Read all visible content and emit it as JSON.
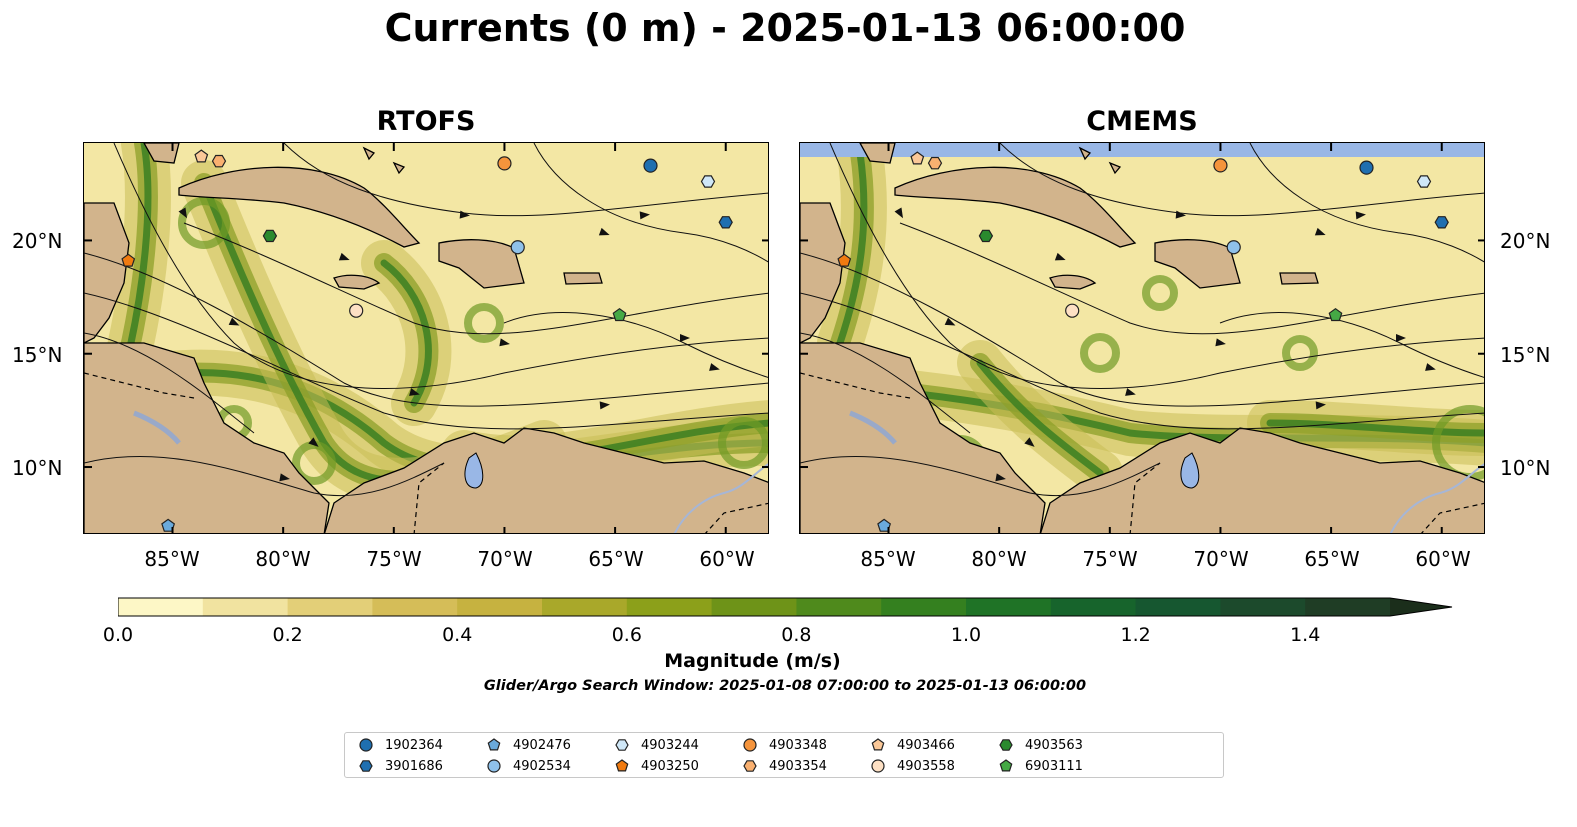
{
  "title": "Currents (0 m) - 2025-01-13 06:00:00",
  "panels": [
    {
      "title": "RTOFS"
    },
    {
      "title": "CMEMS"
    }
  ],
  "axes": {
    "lat_labels": [
      "20°N",
      "15°N",
      "10°N"
    ],
    "lon_labels": [
      "85°W",
      "80°W",
      "75°W",
      "70°W",
      "65°W",
      "60°W"
    ]
  },
  "colorbar": {
    "label": "Magnitude (m/s)",
    "ticks": [
      "0.0",
      "0.2",
      "0.4",
      "0.6",
      "0.8",
      "1.0",
      "1.2",
      "1.4"
    ],
    "range": [
      0.0,
      1.5
    ],
    "extend": "max",
    "colors": [
      "#fdf7c6",
      "#f1e3a0",
      "#e3cf78",
      "#d5bd58",
      "#c6b240",
      "#a9a82a",
      "#8ca01a",
      "#6e9318",
      "#4f8a1c",
      "#34801f",
      "#1f7326",
      "#17642c",
      "#165730",
      "#1c4a2c",
      "#1f3d25",
      "#1b2e1b"
    ]
  },
  "search_window": "Glider/Argo Search Window: 2025-01-08 07:00:00 to 2025-01-13 06:00:00",
  "legend": [
    {
      "id": "1902364",
      "marker": "circle",
      "color": "#1f6fb0"
    },
    {
      "id": "3901686",
      "marker": "hexagon",
      "color": "#1f6fb0"
    },
    {
      "id": "4902476",
      "marker": "pentagon",
      "color": "#6aaadc"
    },
    {
      "id": "4902534",
      "marker": "circle",
      "color": "#8fc1ea"
    },
    {
      "id": "4903244",
      "marker": "hexagon",
      "color": "#cfe7f7"
    },
    {
      "id": "4903250",
      "marker": "pentagon",
      "color": "#f07a10"
    },
    {
      "id": "4903348",
      "marker": "circle",
      "color": "#f5943c"
    },
    {
      "id": "4903354",
      "marker": "hexagon",
      "color": "#f9b070"
    },
    {
      "id": "4903466",
      "marker": "pentagon",
      "color": "#fbc898"
    },
    {
      "id": "4903558",
      "marker": "circle",
      "color": "#fde0c4"
    },
    {
      "id": "4903563",
      "marker": "hexagon",
      "color": "#2a8a2e"
    },
    {
      "id": "6903111",
      "marker": "pentagon",
      "color": "#45a945"
    }
  ],
  "land_color": "#d2b48c",
  "water_color": "#99b7e6",
  "floats": [
    {
      "id": "4903466",
      "lon": -83.7,
      "lat": 23.7
    },
    {
      "id": "4903354",
      "lon": -82.9,
      "lat": 23.5
    },
    {
      "id": "4903348",
      "lon": -70.0,
      "lat": 23.4
    },
    {
      "id": "1902364",
      "lon": -63.4,
      "lat": 23.3
    },
    {
      "id": "4903244",
      "lon": -60.8,
      "lat": 22.6
    },
    {
      "id": "3901686",
      "lon": -60.0,
      "lat": 20.8
    },
    {
      "id": "4903563",
      "lon": -80.6,
      "lat": 20.2
    },
    {
      "id": "4902534",
      "lon": -69.4,
      "lat": 19.7
    },
    {
      "id": "4903250",
      "lon": -87.0,
      "lat": 19.1
    },
    {
      "id": "4903558",
      "lon": -76.7,
      "lat": 16.9
    },
    {
      "id": "6903111",
      "lon": -64.8,
      "lat": 16.7
    },
    {
      "id": "4902476",
      "lon": -85.2,
      "lat": 7.4
    }
  ]
}
